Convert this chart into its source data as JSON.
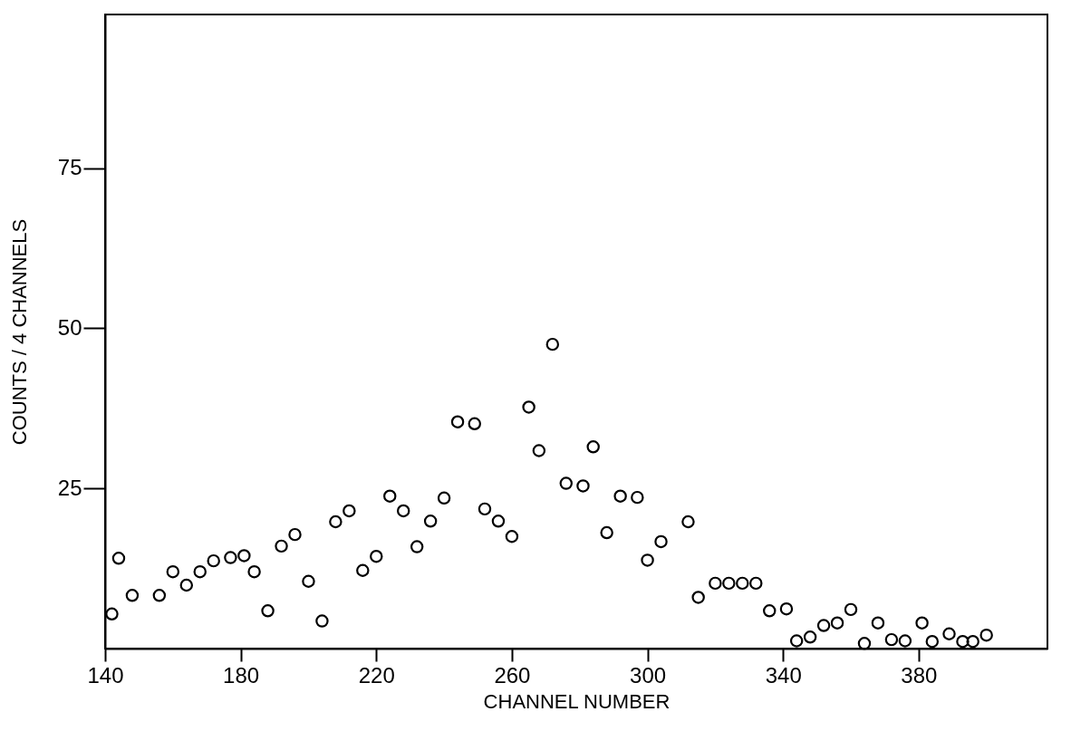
{
  "chart_data": {
    "type": "scatter",
    "xlabel": "CHANNEL NUMBER",
    "ylabel": "COUNTS / 4 CHANNELS",
    "xlim": [
      140,
      418
    ],
    "ylim": [
      0,
      99
    ],
    "xticks": [
      140,
      180,
      220,
      260,
      300,
      340,
      380
    ],
    "yticks": [
      25,
      50,
      75
    ],
    "grid": false,
    "marker": "circle",
    "series": [
      {
        "color": "#000000",
        "x": [
          142,
          144,
          148,
          156,
          160,
          164,
          168,
          172,
          177,
          181,
          184,
          188,
          192,
          196,
          200,
          204,
          208,
          212,
          216,
          220,
          224,
          228,
          232,
          236,
          240,
          244,
          249,
          252,
          256,
          260,
          265,
          268,
          272,
          276,
          281,
          284,
          288,
          292,
          297,
          300,
          304,
          312,
          315,
          320,
          324,
          328,
          332,
          336,
          341,
          344,
          348,
          352,
          356,
          360,
          364,
          368,
          372,
          376,
          381,
          384,
          389,
          393,
          396,
          400
        ],
        "values": [
          5.4,
          14.1,
          8.3,
          8.3,
          12.0,
          9.9,
          12.0,
          13.7,
          14.2,
          14.5,
          12.0,
          5.9,
          16.0,
          17.8,
          10.5,
          4.3,
          19.8,
          21.5,
          12.2,
          14.4,
          23.8,
          21.5,
          15.9,
          19.9,
          23.5,
          35.4,
          35.1,
          21.8,
          19.9,
          17.5,
          37.7,
          30.9,
          47.5,
          25.8,
          25.4,
          31.5,
          18.1,
          23.8,
          23.6,
          13.8,
          16.7,
          19.8,
          8.0,
          10.2,
          10.2,
          10.2,
          10.2,
          5.9,
          6.2,
          1.2,
          1.8,
          3.6,
          4.0,
          6.1,
          0.8,
          4.0,
          1.4,
          1.2,
          4.0,
          1.1,
          2.3,
          1.1,
          1.1,
          2.1
        ]
      }
    ]
  }
}
